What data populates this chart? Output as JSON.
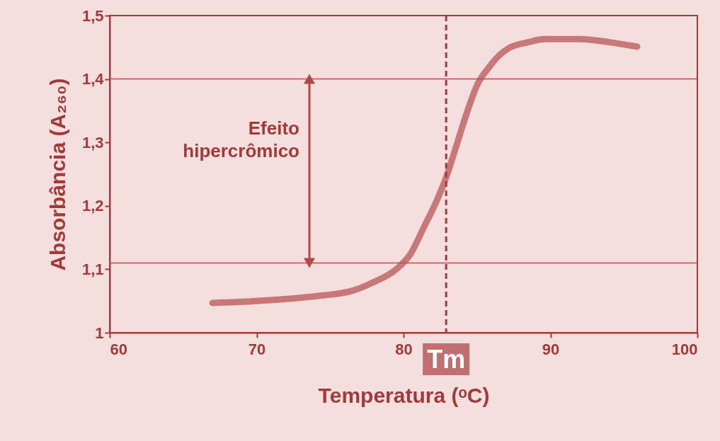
{
  "chart_data": {
    "type": "line",
    "xlabel": "Temperatura (ᵒC)",
    "ylabel": "Absorbância (A₂₆₀)",
    "x": [
      67.0,
      70.0,
      74.2,
      76.5,
      78.0,
      79.5,
      80.5,
      81.4,
      82.2,
      82.9,
      83.6,
      84.3,
      85.0,
      85.8,
      86.5,
      87.2,
      88.5,
      89.6,
      92.0,
      94.0,
      95.9
    ],
    "series": [
      {
        "color": "#c87878",
        "values": [
          1.047,
          1.05,
          1.058,
          1.066,
          1.08,
          1.1,
          1.125,
          1.167,
          1.205,
          1.245,
          1.295,
          1.346,
          1.39,
          1.418,
          1.437,
          1.449,
          1.458,
          1.463,
          1.463,
          1.458,
          1.451
        ]
      }
    ],
    "xlim": [
      60,
      100
    ],
    "xticks": [
      60,
      70,
      80,
      90,
      100
    ],
    "ylim": [
      1,
      1.5
    ],
    "yticks": [
      1,
      {
        "value": 1.1,
        "label": "1,1"
      },
      {
        "value": 1.2,
        "label": "1,2"
      },
      {
        "value": 1.3,
        "label": "1,3"
      },
      {
        "value": 1.4,
        "label": "1,4"
      },
      {
        "value": 1.5,
        "label": "1,5"
      }
    ],
    "ref_lines": [
      {
        "axis": "y",
        "value": 1.4,
        "color": "#b05050"
      },
      {
        "axis": "y",
        "value": 1.11,
        "color": "#b05050"
      },
      {
        "axis": "x",
        "value": 82.9,
        "label": "Tm",
        "color": "#a33a3a",
        "line_style": "dashed"
      }
    ],
    "annotations": [
      "Efeito hipercrômico"
    ],
    "grid": false,
    "line_style": "solid",
    "marker": "none"
  }
}
